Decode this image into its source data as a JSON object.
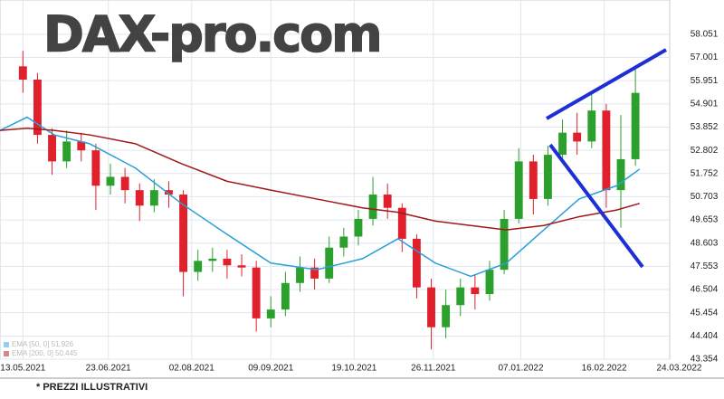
{
  "chart_data": {
    "type": "candlestick",
    "watermark": "DAX-pro.com",
    "footnote": "* PREZZI ILLUSTRATIVI",
    "x": [
      0,
      7,
      14,
      21,
      28,
      35,
      42,
      49,
      56,
      63,
      70,
      77,
      84,
      91,
      98,
      105,
      112,
      119,
      126,
      133,
      140,
      147,
      154,
      161,
      168,
      175,
      182,
      189,
      196,
      203,
      210,
      217,
      224,
      231,
      238,
      245,
      252,
      259,
      266,
      273,
      280,
      287,
      294
    ],
    "open": [
      56.6,
      56.0,
      53.5,
      52.3,
      53.2,
      52.8,
      51.2,
      51.6,
      51.0,
      50.3,
      51.0,
      50.8,
      47.3,
      47.8,
      47.9,
      47.6,
      47.5,
      45.2,
      45.6,
      46.8,
      47.5,
      47.0,
      48.4,
      48.9,
      49.7,
      50.8,
      50.2,
      48.8,
      46.6,
      44.8,
      45.8,
      46.6,
      46.3,
      47.4,
      49.7,
      52.3,
      50.6,
      52.6,
      53.6,
      53.2,
      54.6,
      51.0,
      52.4
    ],
    "high": [
      57.3,
      56.3,
      53.8,
      53.7,
      53.6,
      53.1,
      52.2,
      52.0,
      51.3,
      51.5,
      51.4,
      51.0,
      48.3,
      48.4,
      48.3,
      48.1,
      47.8,
      46.2,
      47.3,
      48.0,
      47.9,
      48.9,
      49.3,
      50.1,
      51.6,
      51.3,
      50.4,
      49.0,
      47.0,
      46.5,
      47.0,
      47.2,
      47.8,
      50.1,
      52.9,
      52.6,
      53.0,
      54.2,
      54.5,
      55.4,
      54.9,
      54.4,
      56.6
    ],
    "low": [
      55.4,
      53.1,
      51.7,
      52.0,
      52.3,
      50.1,
      50.8,
      50.4,
      49.6,
      50.0,
      50.2,
      46.2,
      46.9,
      47.3,
      47.0,
      47.1,
      44.6,
      44.8,
      45.3,
      46.4,
      46.5,
      46.8,
      48.0,
      48.5,
      49.4,
      49.7,
      48.2,
      46.1,
      43.8,
      44.3,
      45.3,
      45.6,
      46.0,
      47.2,
      49.5,
      49.9,
      50.3,
      52.3,
      52.6,
      52.9,
      50.2,
      49.3,
      52.1
    ],
    "close": [
      56.0,
      53.5,
      52.3,
      53.2,
      52.8,
      51.2,
      51.6,
      51.0,
      50.3,
      51.0,
      50.8,
      47.3,
      47.8,
      47.9,
      47.6,
      47.5,
      45.2,
      45.6,
      46.8,
      47.5,
      47.0,
      48.4,
      48.9,
      49.7,
      50.8,
      50.2,
      48.8,
      46.6,
      44.8,
      45.8,
      46.6,
      46.3,
      47.4,
      49.7,
      52.3,
      50.6,
      52.6,
      53.6,
      53.2,
      54.6,
      51.0,
      52.4,
      55.4
    ],
    "up_color": "#2ca02c",
    "down_color": "#e0202c",
    "overlays": [
      {
        "name": "EMA [50, 0] 51.926",
        "color": "#2a9fd8",
        "x": [
          -11,
          2,
          15,
          32,
          54,
          76,
          98,
          119,
          141,
          163,
          180,
          198,
          215,
          232,
          250,
          267,
          285,
          296
        ],
        "values": [
          53.7,
          54.3,
          53.5,
          53.1,
          52.0,
          50.4,
          49.0,
          47.7,
          47.4,
          47.9,
          48.8,
          47.7,
          47.1,
          47.7,
          49.2,
          50.6,
          51.2,
          51.95
        ]
      },
      {
        "name": "EMA [200, 0] 50.445",
        "color": "#a01818",
        "x": [
          -11,
          2,
          15,
          32,
          54,
          76,
          98,
          119,
          141,
          163,
          180,
          198,
          215,
          232,
          250,
          267,
          285,
          296
        ],
        "values": [
          53.7,
          53.8,
          53.7,
          53.5,
          53.1,
          52.2,
          51.4,
          51.0,
          50.6,
          50.2,
          50.0,
          49.6,
          49.4,
          49.2,
          49.4,
          49.8,
          50.1,
          50.4
        ]
      }
    ],
    "xlim": [
      -11,
      330
    ],
    "ylim": [
      43.354,
      59.6
    ],
    "xticks": [
      {
        "value": 0,
        "label": "13.05.2021"
      },
      {
        "value": 41,
        "label": "23.06.2021"
      },
      {
        "value": 81,
        "label": "02.08.2021"
      },
      {
        "value": 119,
        "label": "09.09.2021"
      },
      {
        "value": 159,
        "label": "19.10.2021"
      },
      {
        "value": 197,
        "label": "26.11.2021"
      },
      {
        "value": 239,
        "label": "07.01.2022"
      },
      {
        "value": 279,
        "label": "16.02.2022"
      },
      {
        "value": 315,
        "label": "24.03.2022"
      }
    ],
    "yticks": [
      43.354,
      44.404,
      45.454,
      46.504,
      47.553,
      48.603,
      49.653,
      50.703,
      51.752,
      52.802,
      53.852,
      54.901,
      55.951,
      57.001,
      58.051
    ],
    "grid": true
  }
}
